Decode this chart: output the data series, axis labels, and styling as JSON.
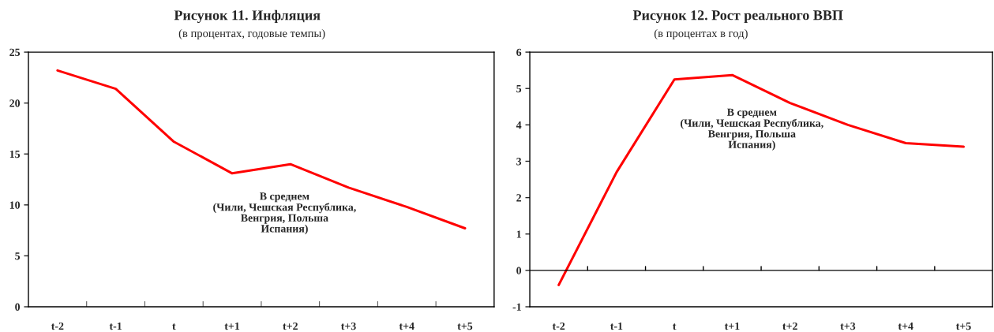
{
  "chart_data": [
    {
      "type": "line",
      "title": "Рисунок 11. Инфляция",
      "subtitle": "(в процентах, годовые темпы)",
      "categories": [
        "t-2",
        "t-1",
        "t",
        "t+1",
        "t+2",
        "t+3",
        "t+4",
        "t+5"
      ],
      "series": [
        {
          "color": "#ff0000",
          "values": [
            23.2,
            21.4,
            16.2,
            13.1,
            14.0,
            11.7,
            9.8,
            7.7
          ]
        }
      ],
      "ylim": [
        0,
        25
      ],
      "yticks": [
        0,
        5,
        10,
        15,
        20,
        25
      ],
      "grid": false,
      "legend": false,
      "marker": "none",
      "line_style": "solid",
      "annotations": [
        "В среднем\n(Чили, Чешская Республика,\nВенгрия, Польша\nИспания)"
      ]
    },
    {
      "type": "line",
      "title": "Рисунок 12. Рост реального ВВП",
      "subtitle": "(в процентах в год)",
      "categories": [
        "t-2",
        "t-1",
        "t",
        "t+1",
        "t+2",
        "t+3",
        "t+4",
        "t+5"
      ],
      "series": [
        {
          "color": "#ff0000",
          "values": [
            -0.4,
            2.7,
            5.25,
            5.37,
            4.6,
            4.0,
            3.5,
            3.4
          ]
        }
      ],
      "ylim": [
        -1,
        6
      ],
      "yticks": [
        -1,
        0,
        1,
        2,
        3,
        4,
        5,
        6
      ],
      "grid": false,
      "legend": false,
      "marker": "none",
      "line_style": "solid",
      "ref_lines": [
        {
          "axis": "y",
          "value": 0,
          "color": "#000000"
        }
      ],
      "annotations": [
        "В среднем\n(Чили, Чешская Республика,\nВенгрия, Польша\nИспания)"
      ]
    }
  ]
}
